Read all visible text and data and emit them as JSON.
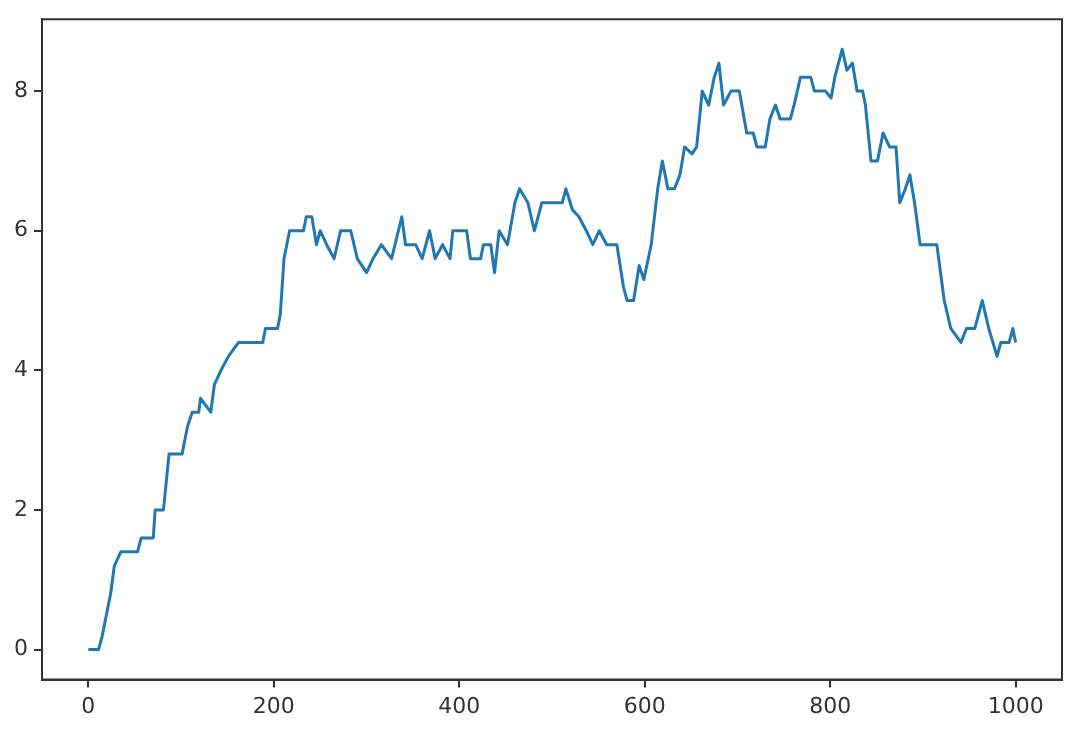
{
  "chart_data": {
    "type": "line",
    "x": [
      0,
      11,
      15,
      18,
      24,
      28,
      35,
      53,
      57,
      70,
      72,
      81,
      87,
      101,
      107,
      112,
      119,
      121,
      132,
      136,
      143,
      151,
      162,
      188,
      191,
      204,
      207,
      211,
      217,
      232,
      235,
      241,
      246,
      250,
      257,
      265,
      272,
      283,
      290,
      300,
      307,
      316,
      327,
      338,
      342,
      353,
      360,
      368,
      374,
      382,
      390,
      393,
      408,
      412,
      423,
      426,
      434,
      438,
      443,
      452,
      460,
      465,
      474,
      481,
      489,
      511,
      515,
      522,
      529,
      537,
      544,
      551,
      559,
      570,
      577,
      581,
      588,
      594,
      599,
      607,
      614,
      619,
      625,
      632,
      638,
      643,
      651,
      656,
      662,
      669,
      675,
      680,
      685,
      693,
      702,
      710,
      717,
      721,
      730,
      735,
      741,
      746,
      757,
      761,
      768,
      779,
      783,
      795,
      801,
      805,
      813,
      818,
      824,
      829,
      835,
      838,
      844,
      851,
      857,
      864,
      871,
      875,
      881,
      886,
      891,
      897,
      915,
      923,
      930,
      941,
      947,
      956,
      964,
      971,
      980,
      984,
      993,
      997,
      1000
    ],
    "series": [
      {
        "color": "#1f77b4",
        "values": [
          0,
          0,
          0.2,
          0.4,
          0.8,
          1.2,
          1.4,
          1.4,
          1.6,
          1.6,
          2.0,
          2.0,
          2.8,
          2.8,
          3.2,
          3.4,
          3.4,
          3.6,
          3.4,
          3.8,
          4.0,
          4.2,
          4.4,
          4.4,
          4.6,
          4.6,
          4.8,
          5.6,
          6.0,
          6.0,
          6.2,
          6.2,
          5.8,
          6.0,
          5.8,
          5.6,
          6.0,
          6.0,
          5.6,
          5.4,
          5.6,
          5.8,
          5.6,
          6.2,
          5.8,
          5.8,
          5.6,
          6.0,
          5.6,
          5.8,
          5.6,
          6.0,
          6.0,
          5.6,
          5.6,
          5.8,
          5.8,
          5.4,
          6.0,
          5.8,
          6.4,
          6.6,
          6.4,
          6.0,
          6.4,
          6.4,
          6.6,
          6.3,
          6.2,
          6.0,
          5.8,
          6.0,
          5.8,
          5.8,
          5.2,
          5.0,
          5.0,
          5.5,
          5.3,
          5.8,
          6.6,
          7.0,
          6.6,
          6.6,
          6.8,
          7.2,
          7.1,
          7.2,
          8.0,
          7.8,
          8.2,
          8.4,
          7.8,
          8.0,
          8.0,
          7.4,
          7.4,
          7.2,
          7.2,
          7.6,
          7.8,
          7.6,
          7.6,
          7.8,
          8.2,
          8.2,
          8.0,
          8.0,
          7.9,
          8.2,
          8.6,
          8.3,
          8.4,
          8.0,
          8.0,
          7.8,
          7.0,
          7.0,
          7.4,
          7.2,
          7.2,
          6.4,
          6.6,
          6.8,
          6.4,
          5.8,
          5.8,
          5.0,
          4.6,
          4.4,
          4.6,
          4.6,
          5.0,
          4.6,
          4.2,
          4.4,
          4.4,
          4.6,
          4.4
        ]
      }
    ],
    "xlim": [
      -50,
      1050
    ],
    "xticks": [
      0,
      200,
      400,
      600,
      800,
      1000
    ],
    "ylim": [
      -0.43,
      9.03
    ],
    "yticks": [
      0,
      2,
      4,
      6,
      8
    ],
    "grid": false,
    "legend": false,
    "marker": "none",
    "line_style": "solid"
  }
}
